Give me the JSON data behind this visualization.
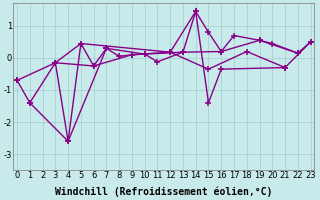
{
  "xlabel": "Windchill (Refroidissement éolien,°C)",
  "bg_color": "#c8eaea",
  "line_color": "#880088",
  "marker": "+",
  "markersize": 5,
  "linewidth": 1.0,
  "series1": [
    [
      0,
      -0.7
    ],
    [
      1,
      -1.4
    ],
    [
      3,
      -0.15
    ],
    [
      5,
      0.45
    ],
    [
      6,
      -0.25
    ],
    [
      7,
      0.3
    ],
    [
      8,
      0.05
    ],
    [
      9,
      0.1
    ],
    [
      10,
      0.12
    ],
    [
      11,
      -0.12
    ],
    [
      13,
      0.18
    ],
    [
      14,
      1.45
    ],
    [
      15,
      0.8
    ],
    [
      16,
      0.2
    ],
    [
      17,
      0.7
    ],
    [
      19,
      0.55
    ],
    [
      20,
      0.45
    ],
    [
      22,
      0.15
    ],
    [
      23,
      0.5
    ]
  ],
  "series2": [
    [
      3,
      -0.15
    ],
    [
      4,
      -2.6
    ],
    [
      5,
      0.45
    ],
    [
      12,
      0.18
    ],
    [
      14,
      1.45
    ],
    [
      15,
      -1.4
    ],
    [
      16,
      -0.35
    ],
    [
      21,
      -0.3
    ]
  ],
  "series3": [
    [
      0,
      -0.7
    ],
    [
      3,
      -0.15
    ],
    [
      6,
      -0.25
    ],
    [
      9,
      0.1
    ],
    [
      12,
      0.18
    ],
    [
      15,
      -0.35
    ],
    [
      18,
      0.2
    ],
    [
      21,
      -0.3
    ],
    [
      23,
      0.5
    ]
  ],
  "series4": [
    [
      1,
      -1.4
    ],
    [
      4,
      -2.6
    ],
    [
      7,
      0.3
    ],
    [
      10,
      0.12
    ],
    [
      13,
      0.18
    ],
    [
      16,
      0.2
    ],
    [
      19,
      0.55
    ],
    [
      22,
      0.15
    ]
  ],
  "xlim": [
    -0.3,
    23.3
  ],
  "ylim": [
    -3.5,
    1.7
  ],
  "xticks": [
    0,
    1,
    2,
    3,
    4,
    5,
    6,
    7,
    8,
    9,
    10,
    11,
    12,
    13,
    14,
    15,
    16,
    17,
    18,
    19,
    20,
    21,
    22,
    23
  ],
  "yticks": [
    -3,
    -2,
    -1,
    0,
    1
  ],
  "tick_fontsize": 6,
  "xlabel_fontsize": 7
}
